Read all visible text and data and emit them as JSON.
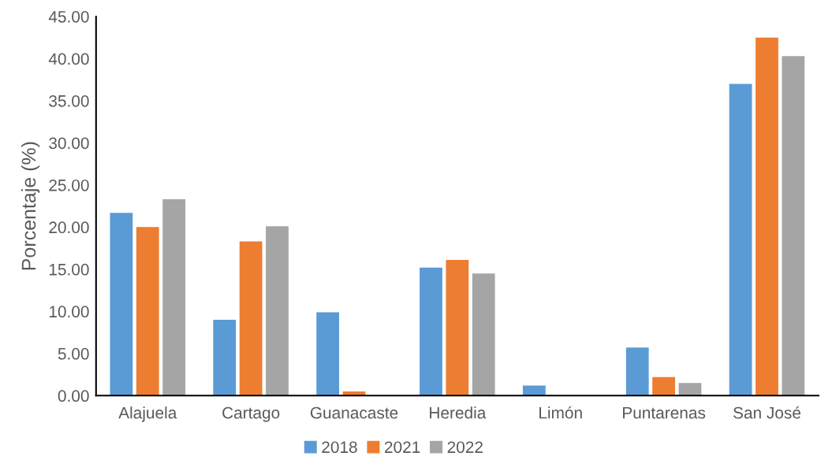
{
  "chart_data": {
    "type": "bar",
    "ylabel": "Porcentaje (%)",
    "categories": [
      "Alajuela",
      "Cartago",
      "Guanacaste",
      "Heredia",
      "Limón",
      "Puntarenas",
      "San José"
    ],
    "series": [
      {
        "name": "2018",
        "color": "#5b9bd5",
        "values": [
          21.7,
          9.0,
          9.9,
          15.2,
          1.2,
          5.7,
          37.0
        ]
      },
      {
        "name": "2021",
        "color": "#ed7d31",
        "values": [
          20.0,
          18.3,
          0.5,
          16.1,
          0,
          2.2,
          42.5
        ]
      },
      {
        "name": "2022",
        "color": "#a5a5a5",
        "values": [
          23.3,
          20.1,
          0,
          14.5,
          0,
          1.5,
          40.3
        ]
      }
    ],
    "ylim": [
      0,
      45
    ],
    "yticks": [
      {
        "value": 0,
        "label": "0.00"
      },
      {
        "value": 5,
        "label": "5.00"
      },
      {
        "value": 10,
        "label": "10.00"
      },
      {
        "value": 15,
        "label": "15.00"
      },
      {
        "value": 20,
        "label": "20.00"
      },
      {
        "value": 25,
        "label": "25.00"
      },
      {
        "value": 30,
        "label": "30.00"
      },
      {
        "value": 35,
        "label": "35.00"
      },
      {
        "value": 40,
        "label": "40.00"
      },
      {
        "value": 45,
        "label": "45.00"
      }
    ],
    "grid": false,
    "legend": "bottom"
  }
}
